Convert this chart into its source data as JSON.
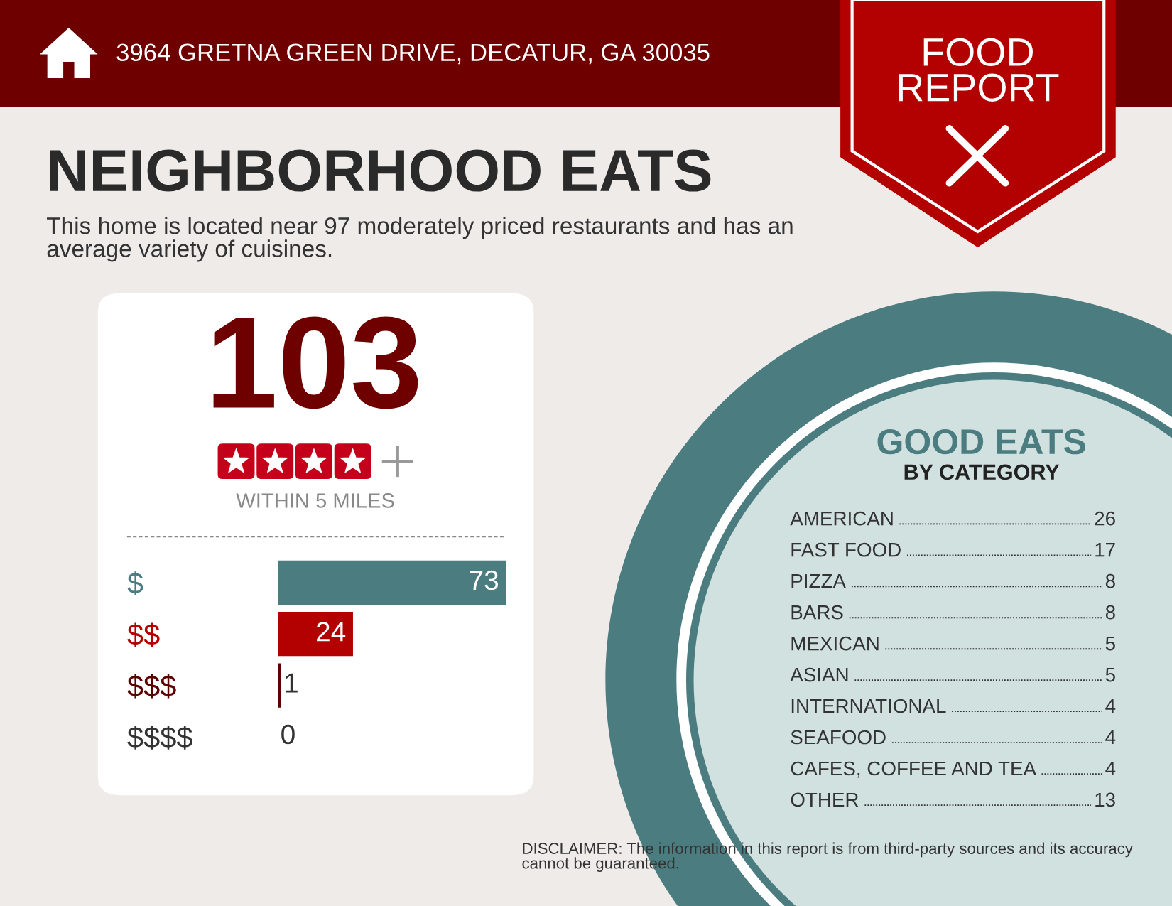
{
  "chart_data": [
    {
      "type": "bar",
      "orientation": "horizontal",
      "title": "NEIGHBORHOOD EATS",
      "subtitle": "This home is located near 97 moderately priced restaurants and has an average variety of cuisines.",
      "categories": [
        "$",
        "$$",
        "$$$",
        "$$$$"
      ],
      "values": [
        73,
        24,
        1,
        0
      ],
      "colors": [
        "#4a7c80",
        "#b30000",
        "#5c0000",
        "#333333"
      ],
      "data_labels": true,
      "annotations": [
        "3964 GRETNA GREEN DRIVE, DECATUR, GA 30035",
        "FOOD REPORT",
        "103",
        "WITHIN 5 MILES",
        "DISCLAIMER: The information in this report is from third-party sources and its accuracy cannot be guaranteed."
      ]
    },
    {
      "type": "other",
      "title": "GOOD EATS",
      "subtitle": "BY CATEGORY",
      "categories": [
        "AMERICAN",
        "FAST FOOD",
        "PIZZA",
        "BARS",
        "MEXICAN",
        "ASIAN",
        "INTERNATIONAL",
        "SEAFOOD",
        "CAFES, COFFEE AND TEA",
        "OTHER"
      ],
      "values": [
        26,
        17,
        8,
        8,
        5,
        5,
        4,
        4,
        4,
        13
      ],
      "data_labels": true
    }
  ]
}
